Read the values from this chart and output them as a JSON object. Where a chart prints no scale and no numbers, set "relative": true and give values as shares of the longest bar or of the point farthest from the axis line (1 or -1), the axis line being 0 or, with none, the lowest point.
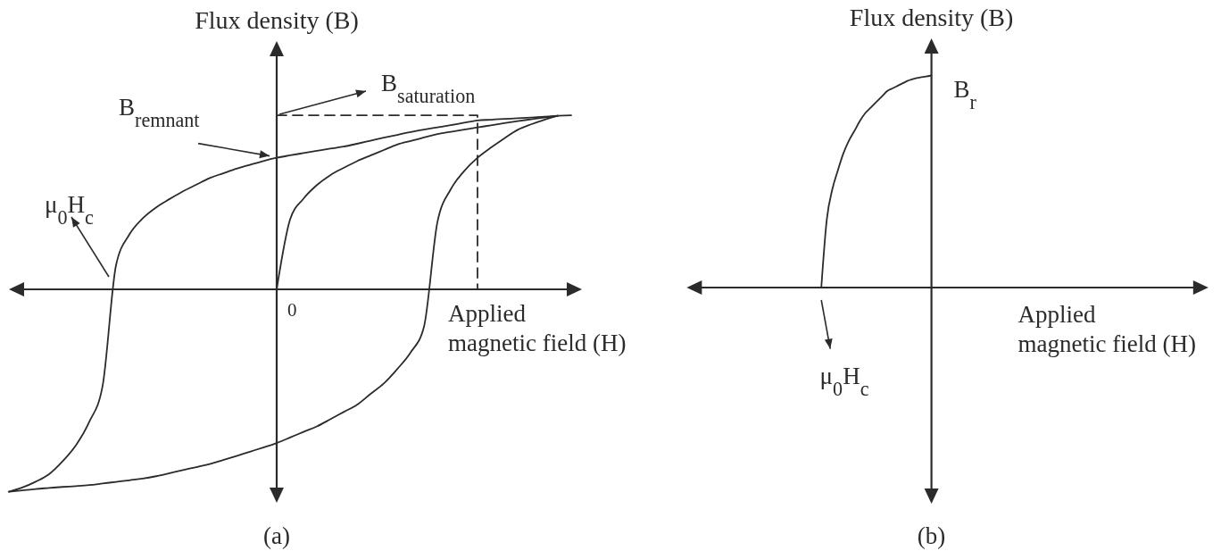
{
  "chart_data": [
    {
      "type": "line",
      "title": "(a)",
      "xlabel": "Applied\nmagnetic field (H)",
      "ylabel": "Flux density (B)",
      "relative": true,
      "line_style": "solid",
      "categories": [
        null,
        null,
        null,
        null,
        null,
        null,
        null,
        null,
        null,
        null,
        null,
        null,
        null,
        null,
        null,
        null,
        null,
        null,
        null,
        null,
        null,
        null,
        null,
        null,
        null,
        null,
        null,
        null,
        null,
        null,
        null,
        null,
        null,
        null,
        null,
        null,
        null,
        null,
        null,
        null,
        null,
        null,
        null
      ],
      "series": [
        {
          "color": "#2b2b2b",
          "values": [
            -1,
            -0.979,
            -0.95,
            -0.913,
            -0.85,
            -0.771,
            -0.655,
            -0.476,
            0.119,
            0.271,
            0.351,
            0.405,
            0.446,
            0.484,
            0.517,
            0.55,
            0.573,
            0.596,
            0.615,
            0.634,
            0.65,
            0.662,
            0.673,
            0.684,
            0.695,
            0.705,
            0.719,
            0.734,
            0.749,
            0.763,
            0.777,
            0.789,
            0.8,
            0.811,
            0.823,
            0.834,
            0.838,
            0.842,
            0.845,
            0.849,
            0.853,
            0.857,
            0.86
          ]
        },
        {
          "color": "#2b2b2b",
          "values": [
            -1,
            -0.993,
            -0.986,
            -0.981,
            -0.976,
            -0.972,
            -0.967,
            -0.959,
            -0.951,
            -0.943,
            -0.935,
            -0.923,
            -0.908,
            -0.893,
            -0.878,
            -0.863,
            -0.843,
            -0.823,
            -0.802,
            -0.781,
            -0.759,
            -0.732,
            -0.704,
            -0.677,
            -0.642,
            -0.606,
            -0.57,
            -0.517,
            -0.465,
            -0.394,
            -0.312,
            -0.185,
            0.33,
            0.494,
            0.584,
            0.65,
            0.7,
            0.746,
            0.788,
            0.815,
            0.838,
            0.857,
            null
          ]
        },
        {
          "color": "#2b2b2b",
          "values": [
            null,
            null,
            null,
            null,
            null,
            null,
            null,
            null,
            null,
            null,
            null,
            null,
            null,
            null,
            null,
            null,
            null,
            null,
            null,
            null,
            0,
            0.345,
            0.448,
            0.515,
            0.564,
            0.6,
            0.633,
            0.661,
            0.688,
            0.715,
            0.733,
            0.75,
            0.767,
            0.778,
            0.789,
            0.8,
            0.81,
            0.821,
            0.831,
            0.84,
            0.849,
            0.857,
            null
          ]
        },
        {
          "type": "step",
          "color": "#2b2b2b",
          "line_style": "dashed",
          "values": [
            null,
            null,
            null,
            null,
            null,
            null,
            null,
            null,
            null,
            null,
            null,
            null,
            null,
            null,
            null,
            null,
            null,
            null,
            null,
            null,
            0.86,
            0.86,
            0.86,
            0.86,
            0.86,
            0.86,
            0.86,
            0.86,
            0.86,
            0.86,
            0.86,
            0.86,
            0.86,
            0.86,
            0.86,
            0,
            null,
            null,
            null,
            null,
            null,
            null,
            null
          ]
        }
      ],
      "annotations": [
        {
          "text": "B$_{saturation}$",
          "y": 0.86
        },
        "B$_{remnant}$",
        "μ$_{0}$H$_{c}$",
        "0"
      ]
    },
    {
      "type": "line",
      "title": "(b)",
      "xlabel": "Applied\nmagnetic field (H)",
      "ylabel": "Flux density (B)",
      "relative": true,
      "line_style": "solid",
      "categories": [
        null,
        null,
        null,
        null,
        null,
        null,
        null,
        null,
        null,
        null,
        null,
        null,
        null,
        null,
        null,
        null,
        null,
        null,
        null,
        null,
        null,
        null,
        null,
        null,
        null,
        null,
        null,
        null,
        null,
        null,
        null,
        null,
        null,
        null,
        null,
        null,
        null,
        null,
        null,
        null,
        null,
        null,
        null,
        null,
        null,
        null,
        null,
        null,
        null,
        null,
        null,
        null,
        null,
        null,
        null,
        null,
        null,
        null,
        null,
        null,
        null,
        null,
        null,
        null,
        null,
        null,
        null,
        null,
        null,
        null,
        null,
        null,
        null,
        null,
        null,
        null,
        null,
        null,
        null,
        null,
        null,
        null,
        null,
        null,
        null,
        null,
        null,
        null,
        null,
        null,
        null,
        null,
        null,
        null,
        null
      ],
      "series": [
        {
          "color": "#2b2b2b",
          "values": [
            null,
            null,
            null,
            null,
            null,
            null,
            null,
            null,
            null,
            null,
            null,
            null,
            null,
            null,
            null,
            null,
            null,
            null,
            null,
            null,
            null,
            null,
            null,
            null,
            0,
            0.322,
            0.463,
            0.552,
            0.632,
            0.692,
            0.738,
            0.785,
            0.823,
            0.849,
            0.875,
            0.901,
            0.927,
            0.94,
            0.953,
            0.966,
            0.978,
            0.986,
            0.991,
            0.995,
            1,
            null,
            null,
            null,
            null,
            null,
            null,
            null,
            null,
            null,
            null,
            null,
            null,
            null,
            null,
            null,
            null,
            null,
            null,
            null,
            null,
            null,
            null,
            null,
            null,
            null,
            null,
            null,
            null,
            null,
            null,
            null,
            null,
            null,
            null,
            null,
            null,
            null,
            null,
            null,
            null,
            null,
            null,
            null,
            null,
            null,
            null,
            null,
            null,
            null,
            null
          ]
        }
      ],
      "annotations": [
        "B$_{r}$",
        "μ$_{0}$H$_{c}$"
      ]
    }
  ]
}
